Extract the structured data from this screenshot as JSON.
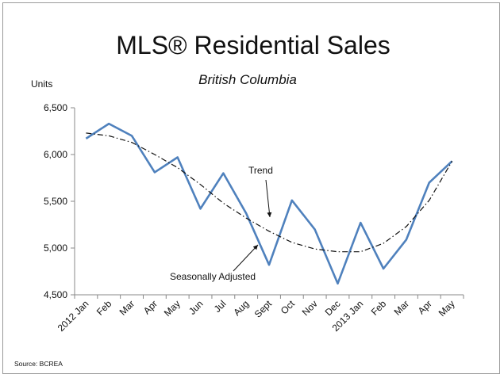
{
  "chart_data": {
    "type": "line",
    "title": "MLS® Residential Sales",
    "subtitle": "British Columbia",
    "ylabel": "Units",
    "ylim": [
      4500,
      6500
    ],
    "yticks": [
      "4,500",
      "5,000",
      "5,500",
      "6,000",
      "6,500"
    ],
    "ytick_values": [
      4500,
      5000,
      5500,
      6000,
      6500
    ],
    "categories": [
      "2012 Jan",
      "Feb",
      "Mar",
      "Apr",
      "May",
      "Jun",
      "Jul",
      "Aug",
      "Sept",
      "Oct",
      "Nov",
      "Dec",
      "2013 Jan",
      "Feb",
      "Mar",
      "Apr",
      "May"
    ],
    "series": [
      {
        "name": "Seasonally Adjusted",
        "style": "solid",
        "color": "#4f81bd",
        "values": [
          6170,
          6330,
          6200,
          5810,
          5970,
          5420,
          5800,
          5370,
          4820,
          5510,
          5200,
          4620,
          5270,
          4780,
          5090,
          5700,
          5930
        ]
      },
      {
        "name": "Trend",
        "style": "dash-dot",
        "color": "#111111",
        "values": [
          6230,
          6200,
          6130,
          6000,
          5860,
          5680,
          5480,
          5320,
          5180,
          5060,
          4990,
          4960,
          4960,
          5050,
          5230,
          5510,
          5930
        ]
      }
    ],
    "annotations": [
      {
        "text": "Trend",
        "points_to": "Trend"
      },
      {
        "text": "Seasonally Adjusted",
        "points_to": "Seasonally Adjusted"
      }
    ],
    "grid": false,
    "legend": "none"
  },
  "footer": {
    "source": "Source: BCREA"
  }
}
